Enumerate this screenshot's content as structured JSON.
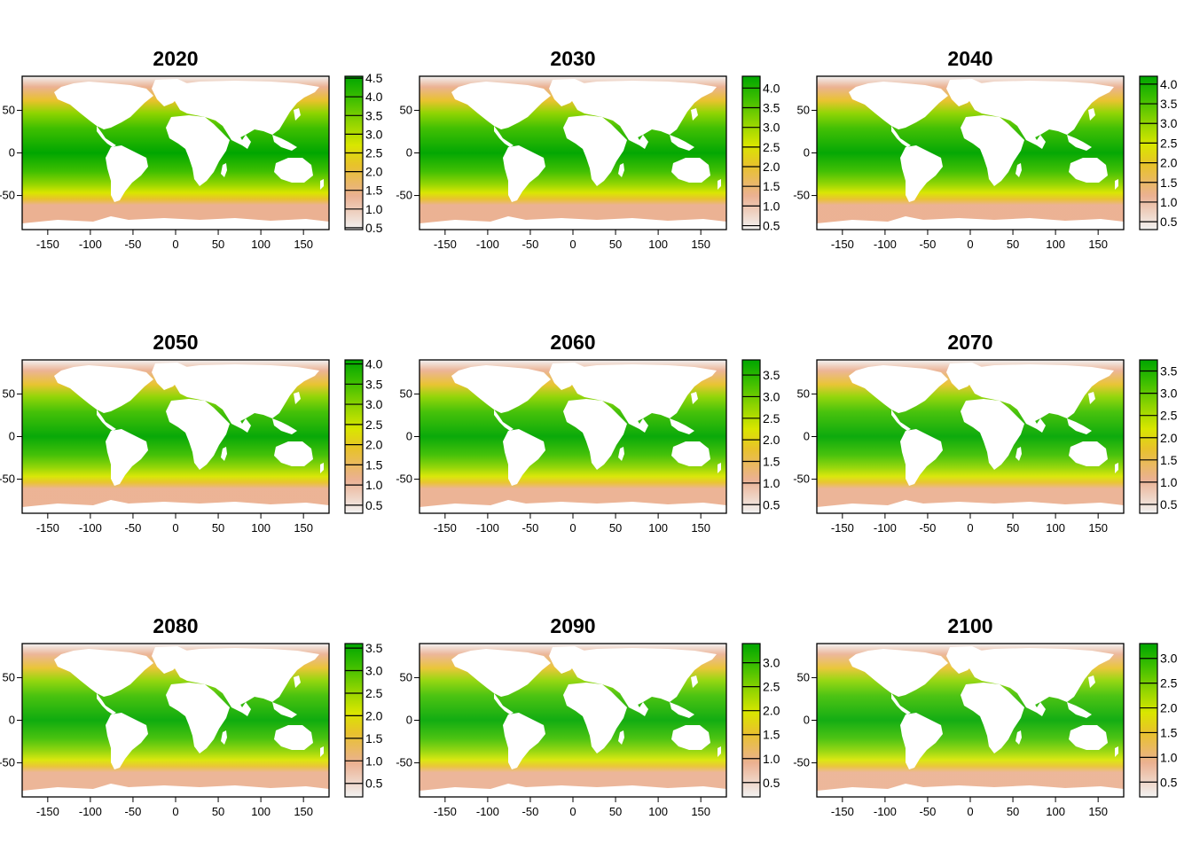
{
  "figure": {
    "palette": [
      "#f2f2f2",
      "#ebb192",
      "#e8c22b",
      "#d9e600",
      "#8fd400",
      "#3fbf00",
      "#00a600"
    ],
    "land_color": "#ffffff",
    "x_ticks": [
      "-150",
      "-100",
      "-50",
      "0",
      "50",
      "100",
      "150"
    ],
    "x_tick_values": [
      -150,
      -100,
      -50,
      0,
      50,
      100,
      150
    ],
    "y_ticks": [
      "50",
      "0",
      "-50"
    ],
    "y_tick_values": [
      50,
      0,
      -50
    ],
    "x_range": [
      -180,
      180
    ],
    "y_range": [
      -90,
      90
    ]
  },
  "panels": [
    {
      "title": "2020",
      "legend_labels": [
        "4.5",
        "4.0",
        "3.5",
        "3.0",
        "2.5",
        "2.0",
        "1.5",
        "1.0",
        "0.5"
      ],
      "legend_values": [
        4.5,
        4.0,
        3.5,
        3.0,
        2.5,
        2.0,
        1.5,
        1.0,
        0.5
      ],
      "legend_range": [
        0.45,
        4.55
      ],
      "max": 4.5
    },
    {
      "title": "2030",
      "legend_labels": [
        "4.0",
        "3.5",
        "3.0",
        "2.5",
        "2.0",
        "1.5",
        "1.0",
        "0.5"
      ],
      "legend_values": [
        4.0,
        3.5,
        3.0,
        2.5,
        2.0,
        1.5,
        1.0,
        0.5
      ],
      "legend_range": [
        0.4,
        4.3
      ],
      "max": 4.3
    },
    {
      "title": "2040",
      "legend_labels": [
        "4.0",
        "3.5",
        "3.0",
        "2.5",
        "2.0",
        "1.5",
        "1.0",
        "0.5"
      ],
      "legend_values": [
        4.0,
        3.5,
        3.0,
        2.5,
        2.0,
        1.5,
        1.0,
        0.5
      ],
      "legend_range": [
        0.3,
        4.2
      ],
      "max": 4.2
    },
    {
      "title": "2050",
      "legend_labels": [
        "4.0",
        "3.5",
        "3.0",
        "2.5",
        "2.0",
        "1.5",
        "1.0",
        "0.5"
      ],
      "legend_values": [
        4.0,
        3.5,
        3.0,
        2.5,
        2.0,
        1.5,
        1.0,
        0.5
      ],
      "legend_range": [
        0.3,
        4.1
      ],
      "max": 4.1
    },
    {
      "title": "2060",
      "legend_labels": [
        "3.5",
        "3.0",
        "2.5",
        "2.0",
        "1.5",
        "1.0",
        "0.5"
      ],
      "legend_values": [
        3.5,
        3.0,
        2.5,
        2.0,
        1.5,
        1.0,
        0.5
      ],
      "legend_range": [
        0.3,
        3.85
      ],
      "max": 3.85
    },
    {
      "title": "2070",
      "legend_labels": [
        "3.5",
        "3.0",
        "2.5",
        "2.0",
        "1.5",
        "1.0",
        "0.5"
      ],
      "legend_values": [
        3.5,
        3.0,
        2.5,
        2.0,
        1.5,
        1.0,
        0.5
      ],
      "legend_range": [
        0.3,
        3.75
      ],
      "max": 3.75
    },
    {
      "title": "2080",
      "legend_labels": [
        "3.5",
        "3.0",
        "2.5",
        "2.0",
        "1.5",
        "1.0",
        "0.5"
      ],
      "legend_values": [
        3.5,
        3.0,
        2.5,
        2.0,
        1.5,
        1.0,
        0.5
      ],
      "legend_range": [
        0.2,
        3.6
      ],
      "max": 3.6
    },
    {
      "title": "2090",
      "legend_labels": [
        "3.0",
        "2.5",
        "2.0",
        "1.5",
        "1.0",
        "0.5"
      ],
      "legend_values": [
        3.0,
        2.5,
        2.0,
        1.5,
        1.0,
        0.5
      ],
      "legend_range": [
        0.2,
        3.4
      ],
      "max": 3.4
    },
    {
      "title": "2100",
      "legend_labels": [
        "3.0",
        "2.5",
        "2.0",
        "1.5",
        "1.0",
        "0.5"
      ],
      "legend_values": [
        3.0,
        2.5,
        2.0,
        1.5,
        1.0,
        0.5
      ],
      "legend_range": [
        0.2,
        3.3
      ],
      "max": 3.3
    }
  ]
}
